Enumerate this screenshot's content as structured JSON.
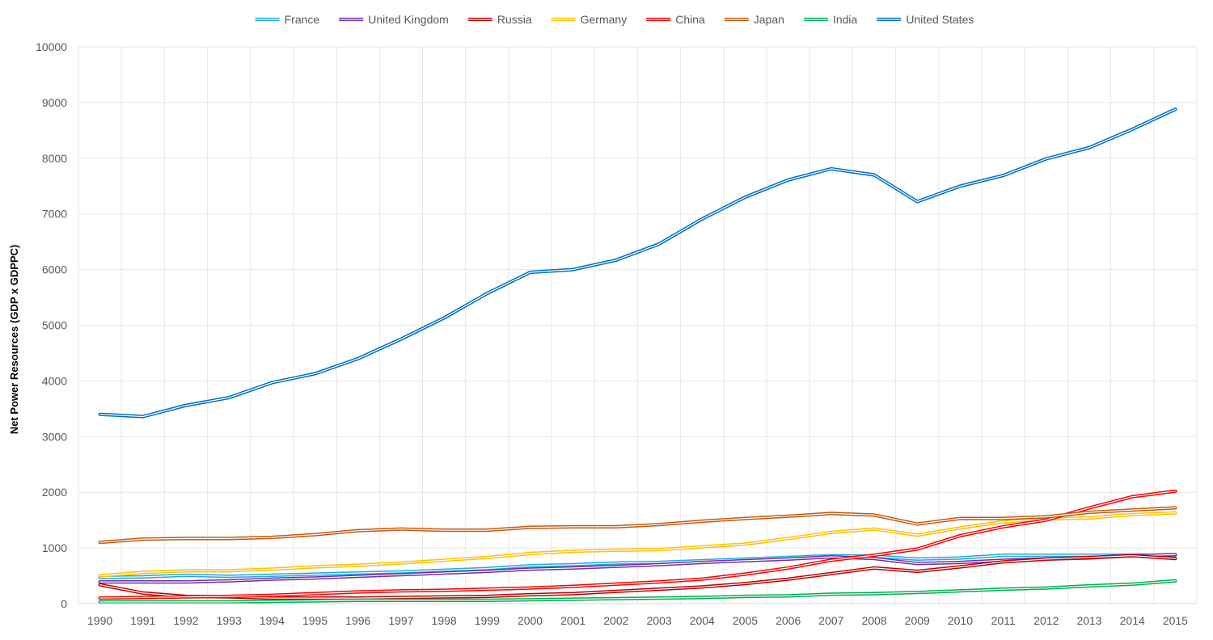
{
  "chart_data": {
    "type": "line",
    "title": "",
    "xlabel": "",
    "ylabel": "Net Power Resources (GDP x GDPPC)",
    "ylim": [
      0,
      10000
    ],
    "y_ticks": [
      0,
      1000,
      2000,
      3000,
      4000,
      5000,
      6000,
      7000,
      8000,
      9000,
      10000
    ],
    "grid": true,
    "legend_position": "top",
    "line_style": "double",
    "categories": [
      "1990",
      "1991",
      "1992",
      "1993",
      "1994",
      "1995",
      "1996",
      "1997",
      "1998",
      "1999",
      "2000",
      "2001",
      "2002",
      "2003",
      "2004",
      "2005",
      "2006",
      "2007",
      "2008",
      "2009",
      "2010",
      "2011",
      "2012",
      "2013",
      "2014",
      "2015"
    ],
    "series": [
      {
        "name": "France",
        "color": "#1fa9e1",
        "values": [
          470,
          480,
          510,
          490,
          510,
          530,
          550,
          570,
          600,
          630,
          680,
          700,
          730,
          740,
          770,
          800,
          830,
          860,
          850,
          800,
          820,
          870,
          870,
          870,
          870,
          870
        ]
      },
      {
        "name": "United Kingdom",
        "color": "#7030a0",
        "values": [
          390,
          390,
          390,
          410,
          440,
          460,
          490,
          520,
          550,
          580,
          620,
          640,
          670,
          700,
          740,
          770,
          800,
          840,
          810,
          720,
          740,
          780,
          800,
          820,
          860,
          880
        ]
      },
      {
        "name": "Russia",
        "color": "#c00000",
        "values": [
          340,
          190,
          130,
          120,
          100,
          100,
          100,
          110,
          120,
          130,
          160,
          180,
          220,
          260,
          300,
          360,
          440,
          540,
          640,
          580,
          660,
          750,
          800,
          830,
          860,
          810
        ]
      },
      {
        "name": "Germany",
        "color": "#ffc000",
        "values": [
          500,
          560,
          590,
          590,
          620,
          660,
          690,
          730,
          780,
          830,
          900,
          940,
          960,
          970,
          1020,
          1070,
          1170,
          1280,
          1340,
          1230,
          1360,
          1470,
          1520,
          1540,
          1600,
          1630
        ]
      },
      {
        "name": "China",
        "color": "#ff0000",
        "values": [
          100,
          110,
          120,
          130,
          150,
          180,
          210,
          230,
          240,
          260,
          280,
          310,
          350,
          390,
          440,
          530,
          640,
          780,
          870,
          980,
          1220,
          1380,
          1500,
          1720,
          1920,
          2020
        ]
      },
      {
        "name": "Japan",
        "color": "#c55a11",
        "values": [
          1100,
          1160,
          1170,
          1170,
          1190,
          1240,
          1310,
          1340,
          1320,
          1320,
          1370,
          1380,
          1380,
          1420,
          1480,
          1530,
          1570,
          1620,
          1590,
          1430,
          1530,
          1530,
          1560,
          1640,
          1680,
          1720
        ]
      },
      {
        "name": "India",
        "color": "#00b050",
        "values": [
          30,
          30,
          30,
          30,
          40,
          50,
          60,
          60,
          60,
          60,
          70,
          80,
          90,
          100,
          110,
          130,
          140,
          170,
          180,
          200,
          230,
          260,
          280,
          320,
          350,
          410
        ]
      },
      {
        "name": "United States",
        "color": "#0070c0",
        "values": [
          3400,
          3360,
          3560,
          3700,
          3970,
          4130,
          4400,
          4750,
          5130,
          5570,
          5950,
          6000,
          6170,
          6460,
          6910,
          7300,
          7610,
          7810,
          7700,
          7220,
          7500,
          7690,
          7990,
          8190,
          8520,
          8880
        ]
      }
    ]
  }
}
